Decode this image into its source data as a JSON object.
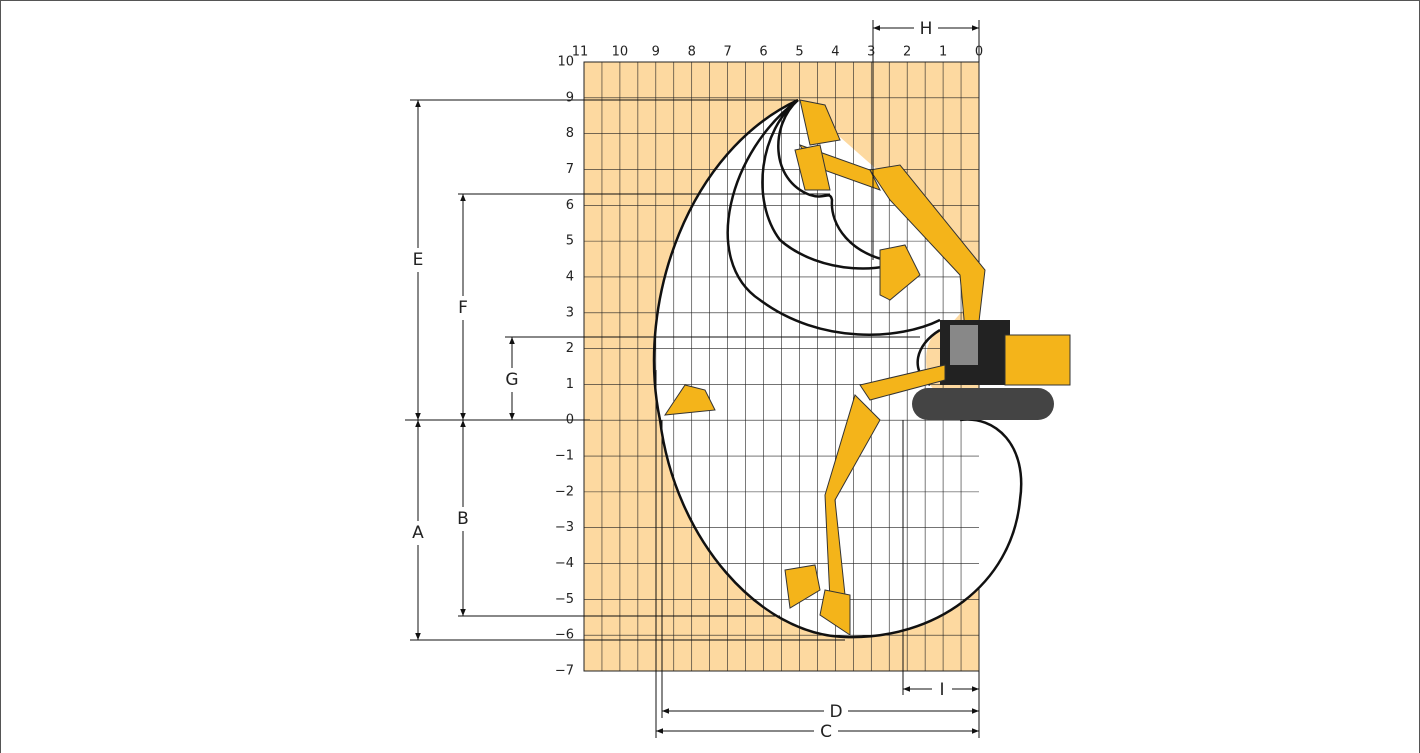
{
  "top_scale": [
    "11",
    "10",
    "9",
    "8",
    "7",
    "6",
    "5",
    "4",
    "3",
    "2",
    "1",
    "0"
  ],
  "side_scale": [
    "10",
    "9",
    "8",
    "7",
    "6",
    "5",
    "4",
    "3",
    "2",
    "1",
    "0",
    "−1",
    "−2",
    "−3",
    "−4",
    "−5",
    "−6",
    "−7"
  ],
  "dimensions": {
    "A": "A",
    "B": "B",
    "C": "C",
    "D": "D",
    "E": "E",
    "F": "F",
    "G": "G",
    "H": "H",
    "I": "I"
  }
}
